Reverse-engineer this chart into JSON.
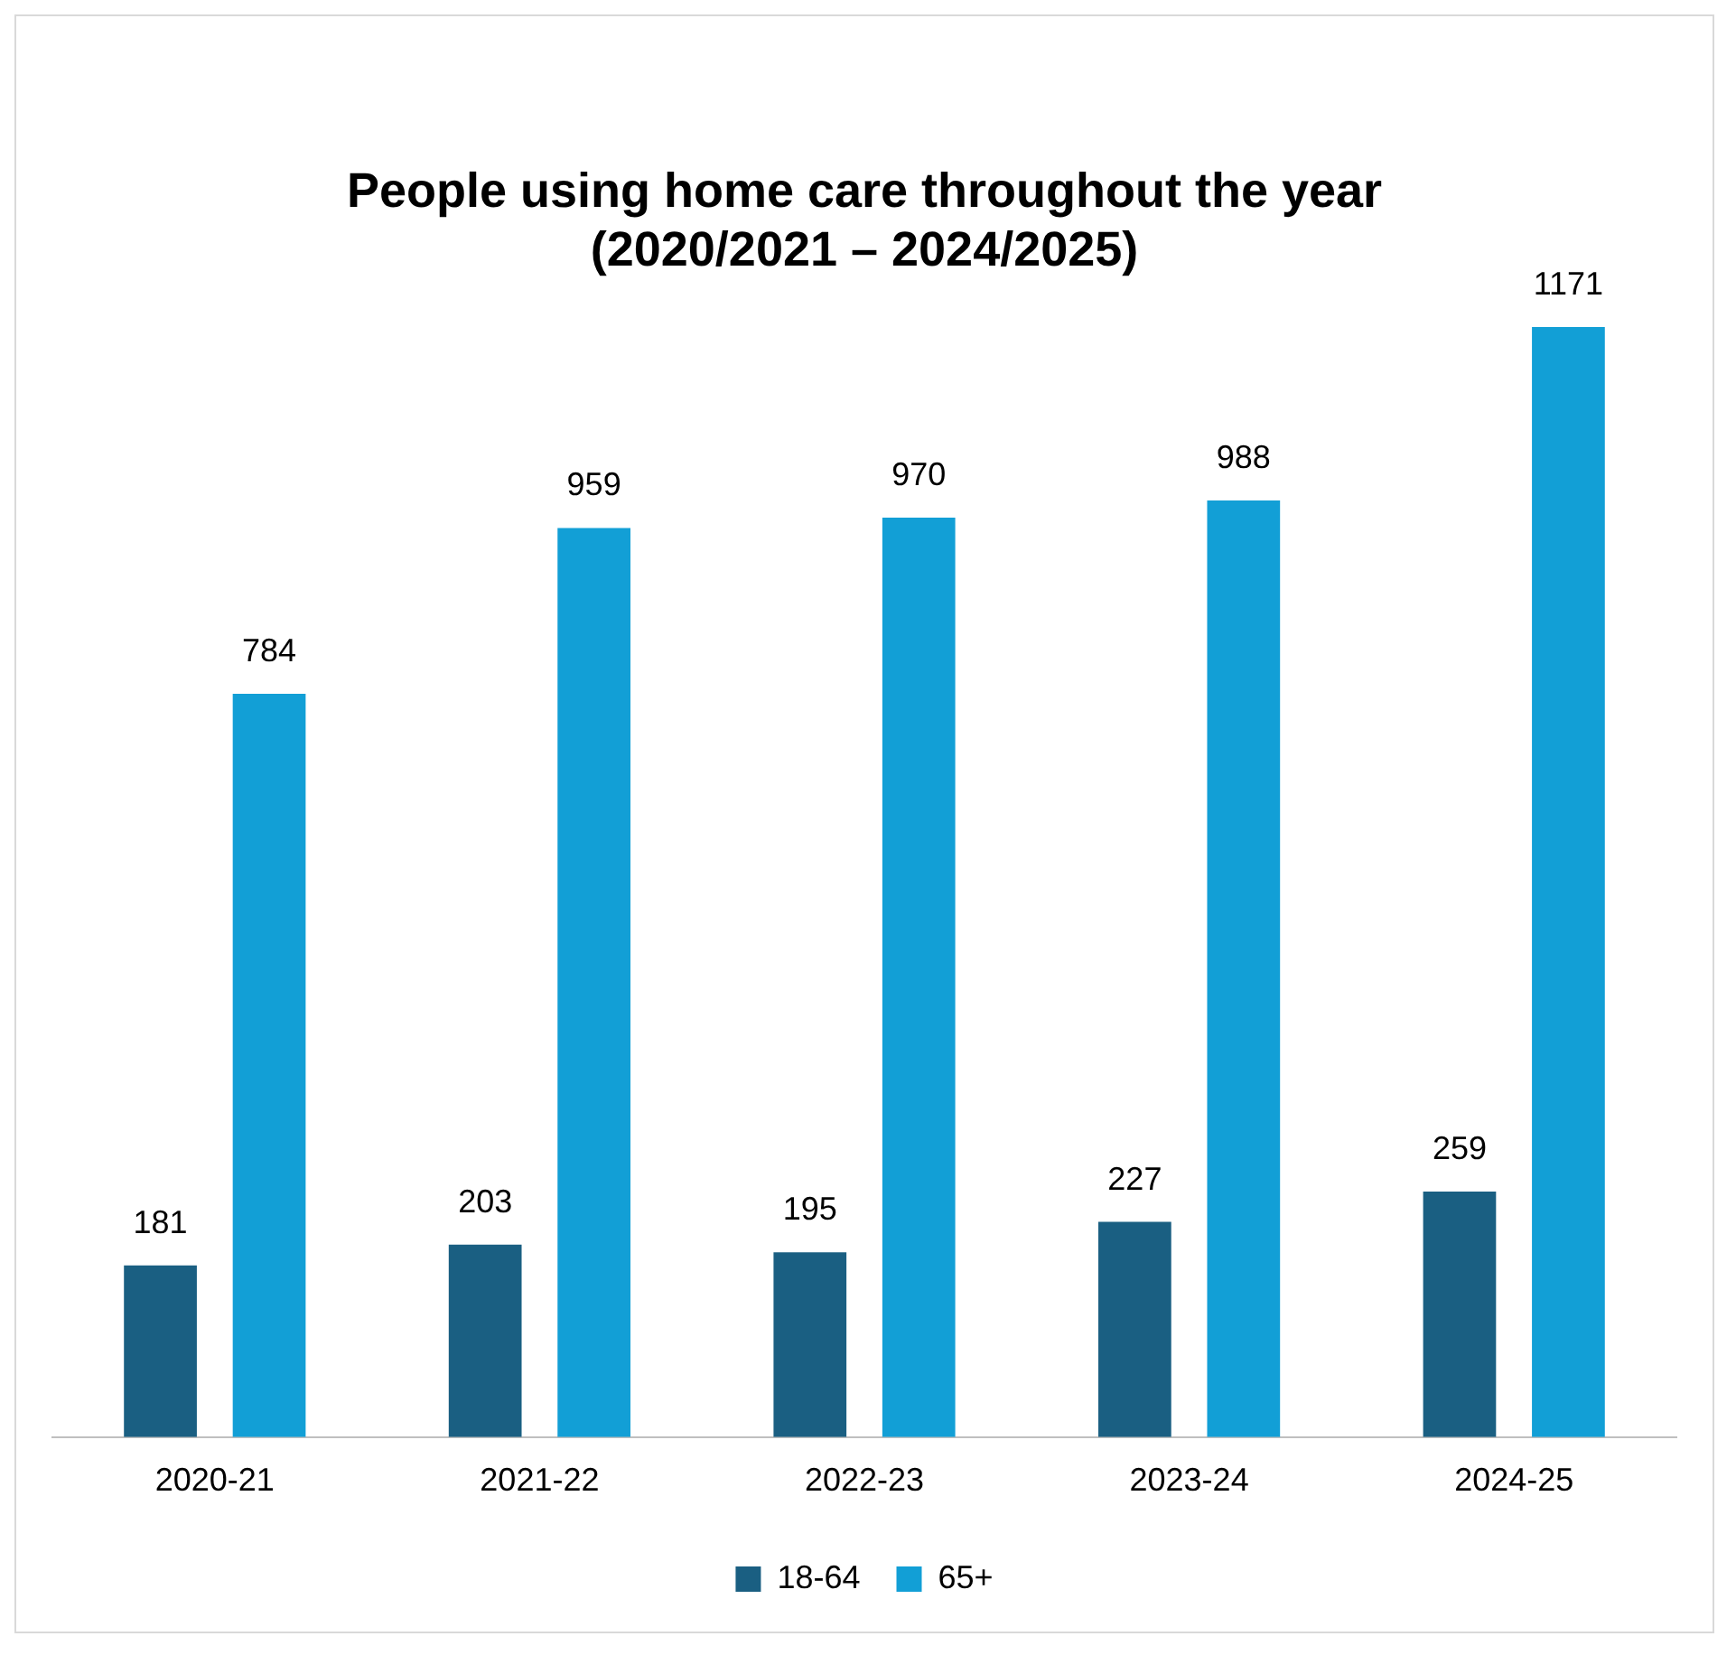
{
  "chart_data": {
    "type": "bar",
    "title": "People using home care throughout the year\n(2020/2021 – 2024/2025)",
    "categories": [
      "2020-21",
      "2021-22",
      "2022-23",
      "2023-24",
      "2024-25"
    ],
    "series": [
      {
        "name": "18-64",
        "color": "#1a5f82",
        "values": [
          181,
          203,
          195,
          227,
          259
        ]
      },
      {
        "name": "65+",
        "color": "#129fd6",
        "values": [
          784,
          959,
          970,
          988,
          1171
        ]
      }
    ],
    "data_labels": true,
    "legend": "bottom",
    "grid": false
  }
}
